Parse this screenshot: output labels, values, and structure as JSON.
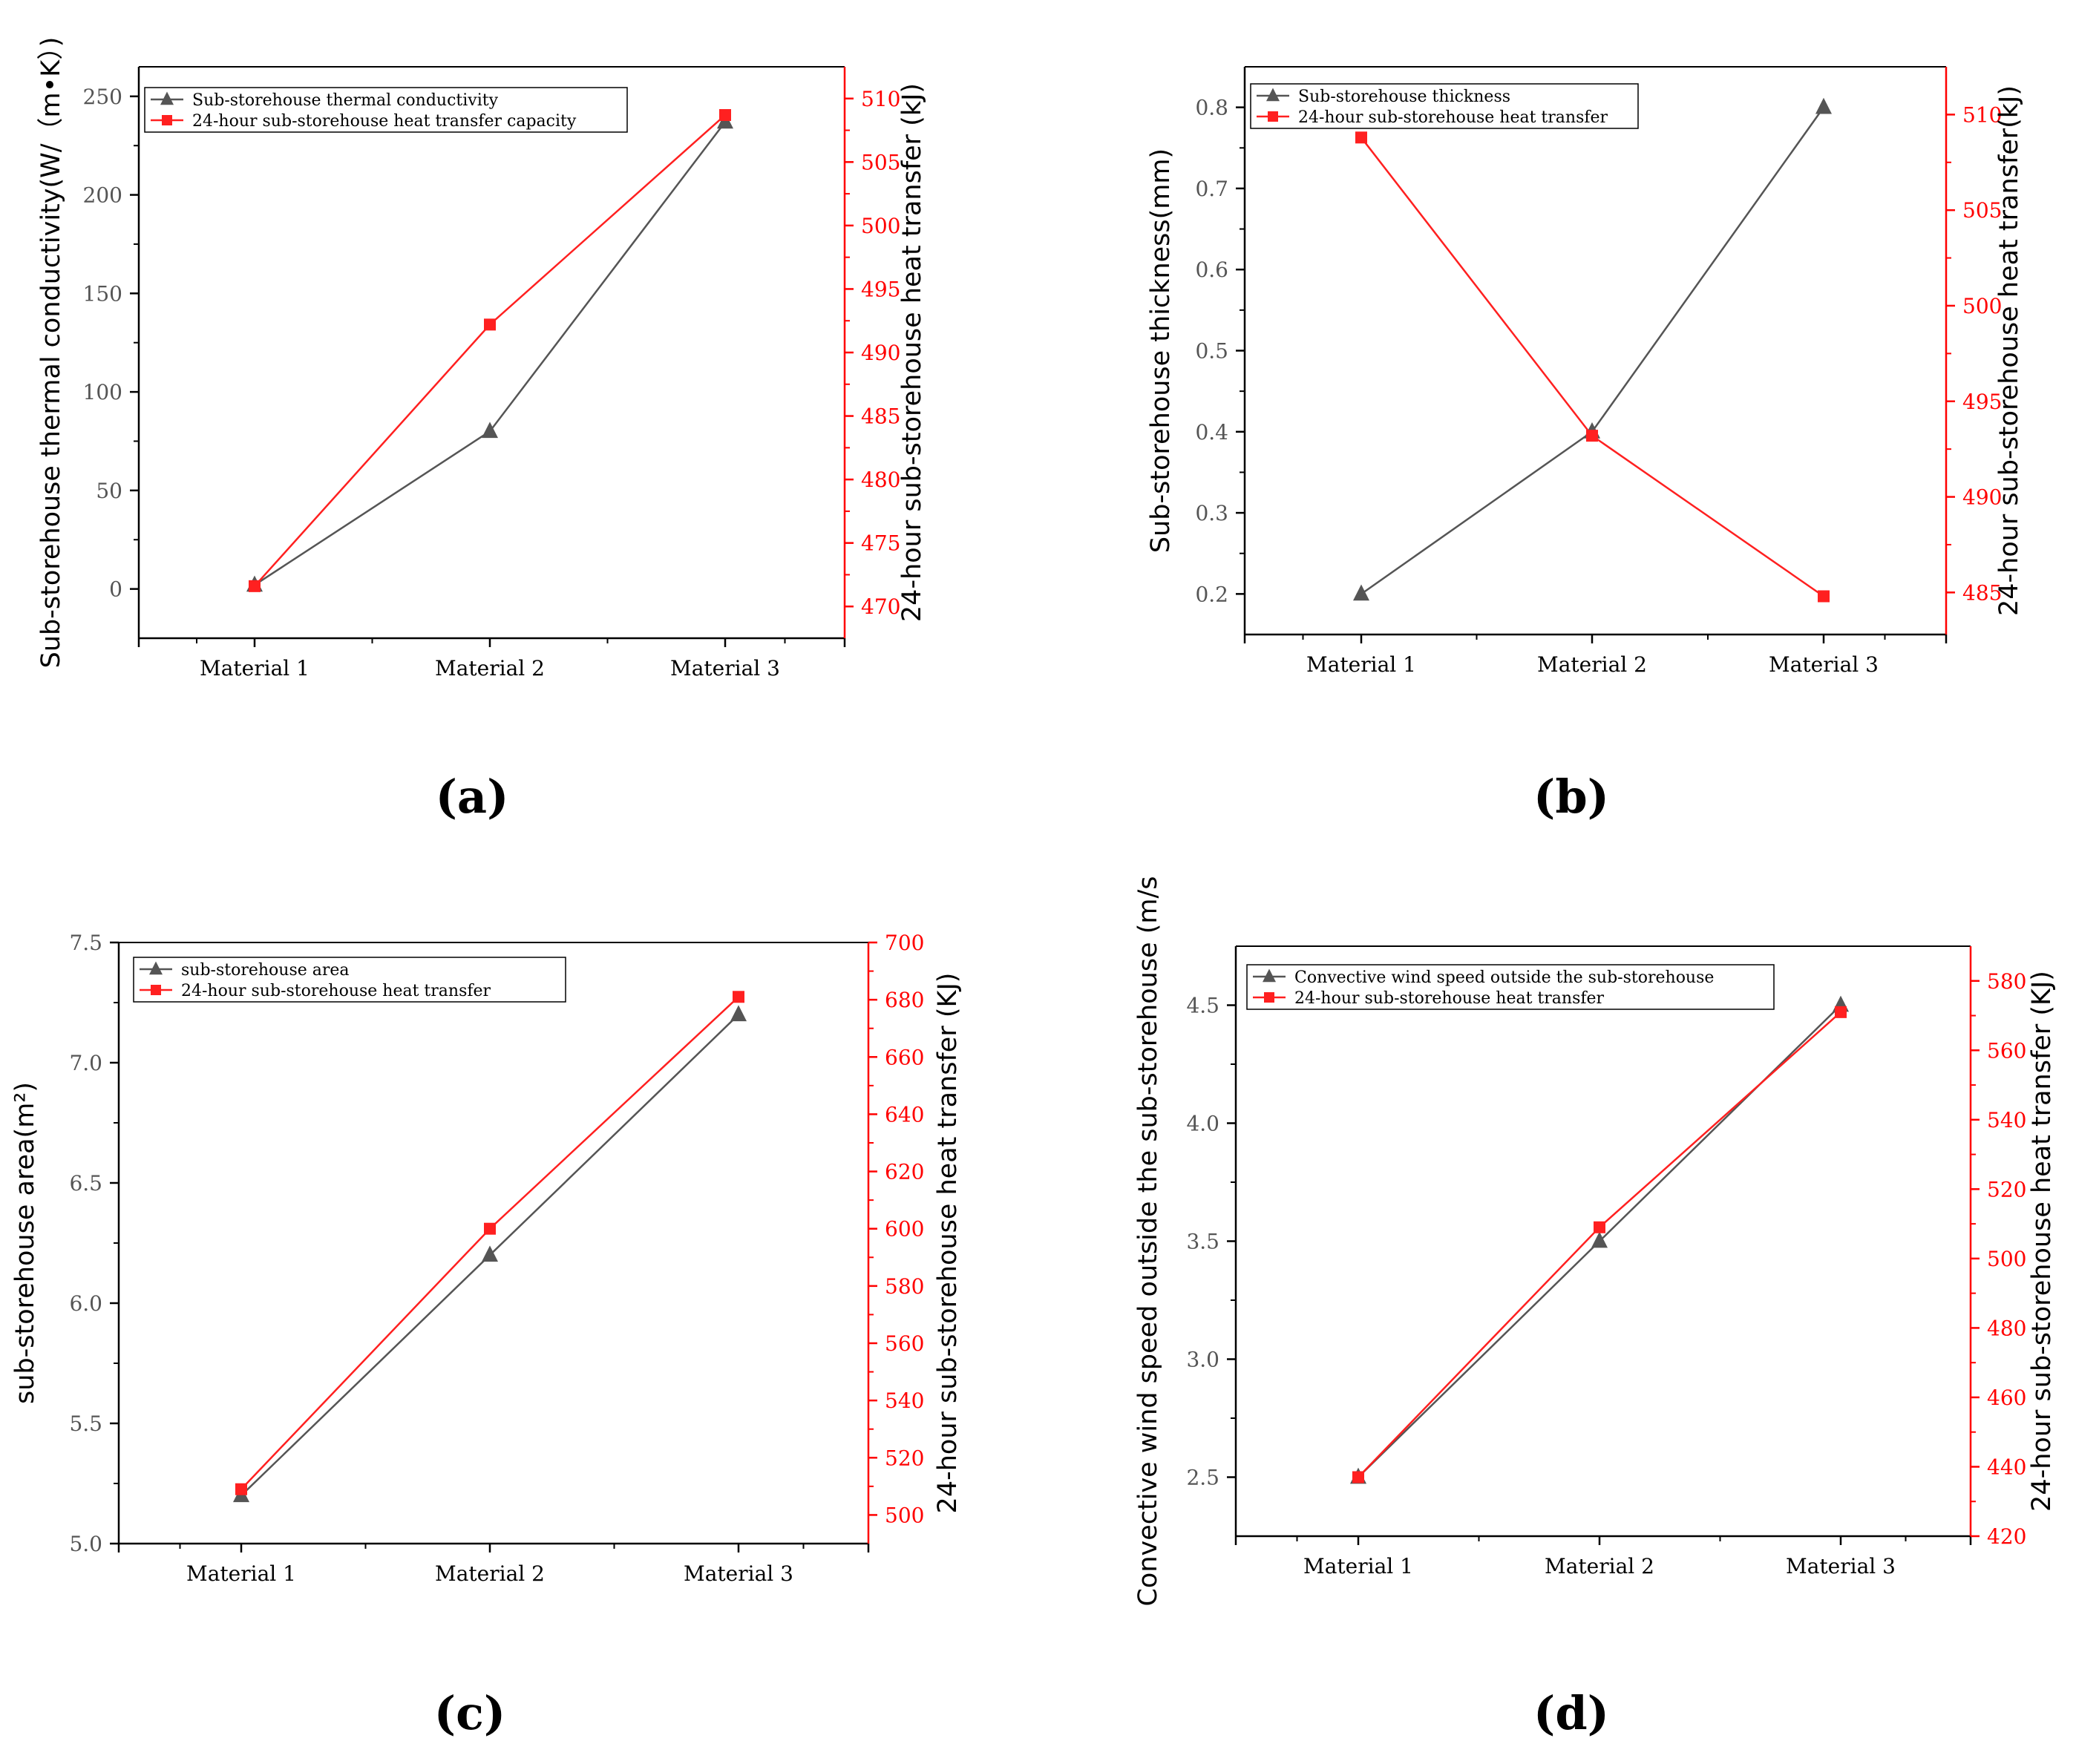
{
  "colors": {
    "left_series": "#555555",
    "right_series": "#ff2020",
    "right_axis": "#ff0000",
    "axis": "#000000"
  },
  "chart_data": [
    {
      "id": "a",
      "type": "line",
      "caption": "(a)",
      "categories": [
        "Material 1",
        "Material 2",
        "Material 3"
      ],
      "ylabel_left": "Sub-storehouse thermal conductivity(W/（m•K）)",
      "ylabel_right": "24-hour sub-storehouse heat transfer (kJ)",
      "ylim_left": [
        -25,
        265
      ],
      "yticks_left": [
        "0",
        "50",
        "100",
        "150",
        "200",
        "250"
      ],
      "ylim_right": [
        467.5,
        512.5
      ],
      "yticks_right": [
        "470",
        "475",
        "480",
        "485",
        "490",
        "495",
        "500",
        "505",
        "510"
      ],
      "legend_position": "top-left",
      "series": [
        {
          "name": "Sub-storehouse thermal conductivity",
          "axis": "left",
          "marker": "triangle",
          "values": [
            2,
            80,
            237
          ]
        },
        {
          "name": "24-hour sub-storehouse heat transfer capacity",
          "axis": "right",
          "marker": "square",
          "values": [
            471.6,
            492.2,
            508.7
          ]
        }
      ]
    },
    {
      "id": "b",
      "type": "line",
      "caption": "(b)",
      "categories": [
        "Material 1",
        "Material 2",
        "Material 3"
      ],
      "ylabel_left": "Sub-storehouse thickness(mm)",
      "ylabel_right": "24-hour sub-storehouse heat transfer(kJ)",
      "ylim_left": [
        0.15,
        0.85
      ],
      "yticks_left": [
        "0.2",
        "0.3",
        "0.4",
        "0.5",
        "0.6",
        "0.7",
        "0.8"
      ],
      "ylim_right": [
        482.8,
        512.5
      ],
      "yticks_right": [
        "485",
        "490",
        "495",
        "500",
        "505",
        "510"
      ],
      "legend_position": "top-left",
      "series": [
        {
          "name": "Sub-storehouse thickness",
          "axis": "left",
          "marker": "triangle",
          "values": [
            0.2,
            0.4,
            0.8
          ]
        },
        {
          "name": "24-hour sub-storehouse heat transfer",
          "axis": "right",
          "marker": "square",
          "values": [
            508.8,
            493.2,
            484.8
          ]
        }
      ]
    },
    {
      "id": "c",
      "type": "line",
      "caption": "(c)",
      "categories": [
        "Material 1",
        "Material 2",
        "Material 3"
      ],
      "ylabel_left": "sub-storehouse area(m²)",
      "ylabel_right": "24-hour sub-storehouse heat transfer (KJ)",
      "ylim_left": [
        5.0,
        7.5
      ],
      "yticks_left": [
        "5.0",
        "5.5",
        "6.0",
        "6.5",
        "7.0",
        "7.5"
      ],
      "ylim_right": [
        490,
        700
      ],
      "yticks_right": [
        "500",
        "520",
        "540",
        "560",
        "580",
        "600",
        "620",
        "640",
        "660",
        "680",
        "700"
      ],
      "legend_position": "top-left",
      "series": [
        {
          "name": "sub-storehouse area",
          "axis": "left",
          "marker": "triangle",
          "values": [
            5.2,
            6.2,
            7.2
          ]
        },
        {
          "name": "24-hour sub-storehouse heat transfer",
          "axis": "right",
          "marker": "square",
          "values": [
            509,
            600,
            681
          ]
        }
      ]
    },
    {
      "id": "d",
      "type": "line",
      "caption": "(d)",
      "categories": [
        "Material 1",
        "Material 2",
        "Material 3"
      ],
      "ylabel_left": "Convective wind speed outside the sub-storehouse (m/s",
      "ylabel_right": "24-hour sub-storehouse heat transfer (KJ)",
      "ylim_left": [
        2.25,
        4.75
      ],
      "yticks_left": [
        "2.5",
        "3.0",
        "3.5",
        "4.0",
        "4.5"
      ],
      "ylim_right": [
        420,
        590
      ],
      "yticks_right": [
        "420",
        "440",
        "460",
        "480",
        "500",
        "520",
        "540",
        "560",
        "580"
      ],
      "legend_position": "top-left",
      "series": [
        {
          "name": "Convective wind speed outside the sub-storehouse",
          "axis": "left",
          "marker": "triangle",
          "values": [
            2.5,
            3.5,
            4.5
          ]
        },
        {
          "name": "24-hour sub-storehouse heat transfer",
          "axis": "right",
          "marker": "square",
          "values": [
            437,
            509,
            571
          ]
        }
      ]
    }
  ]
}
